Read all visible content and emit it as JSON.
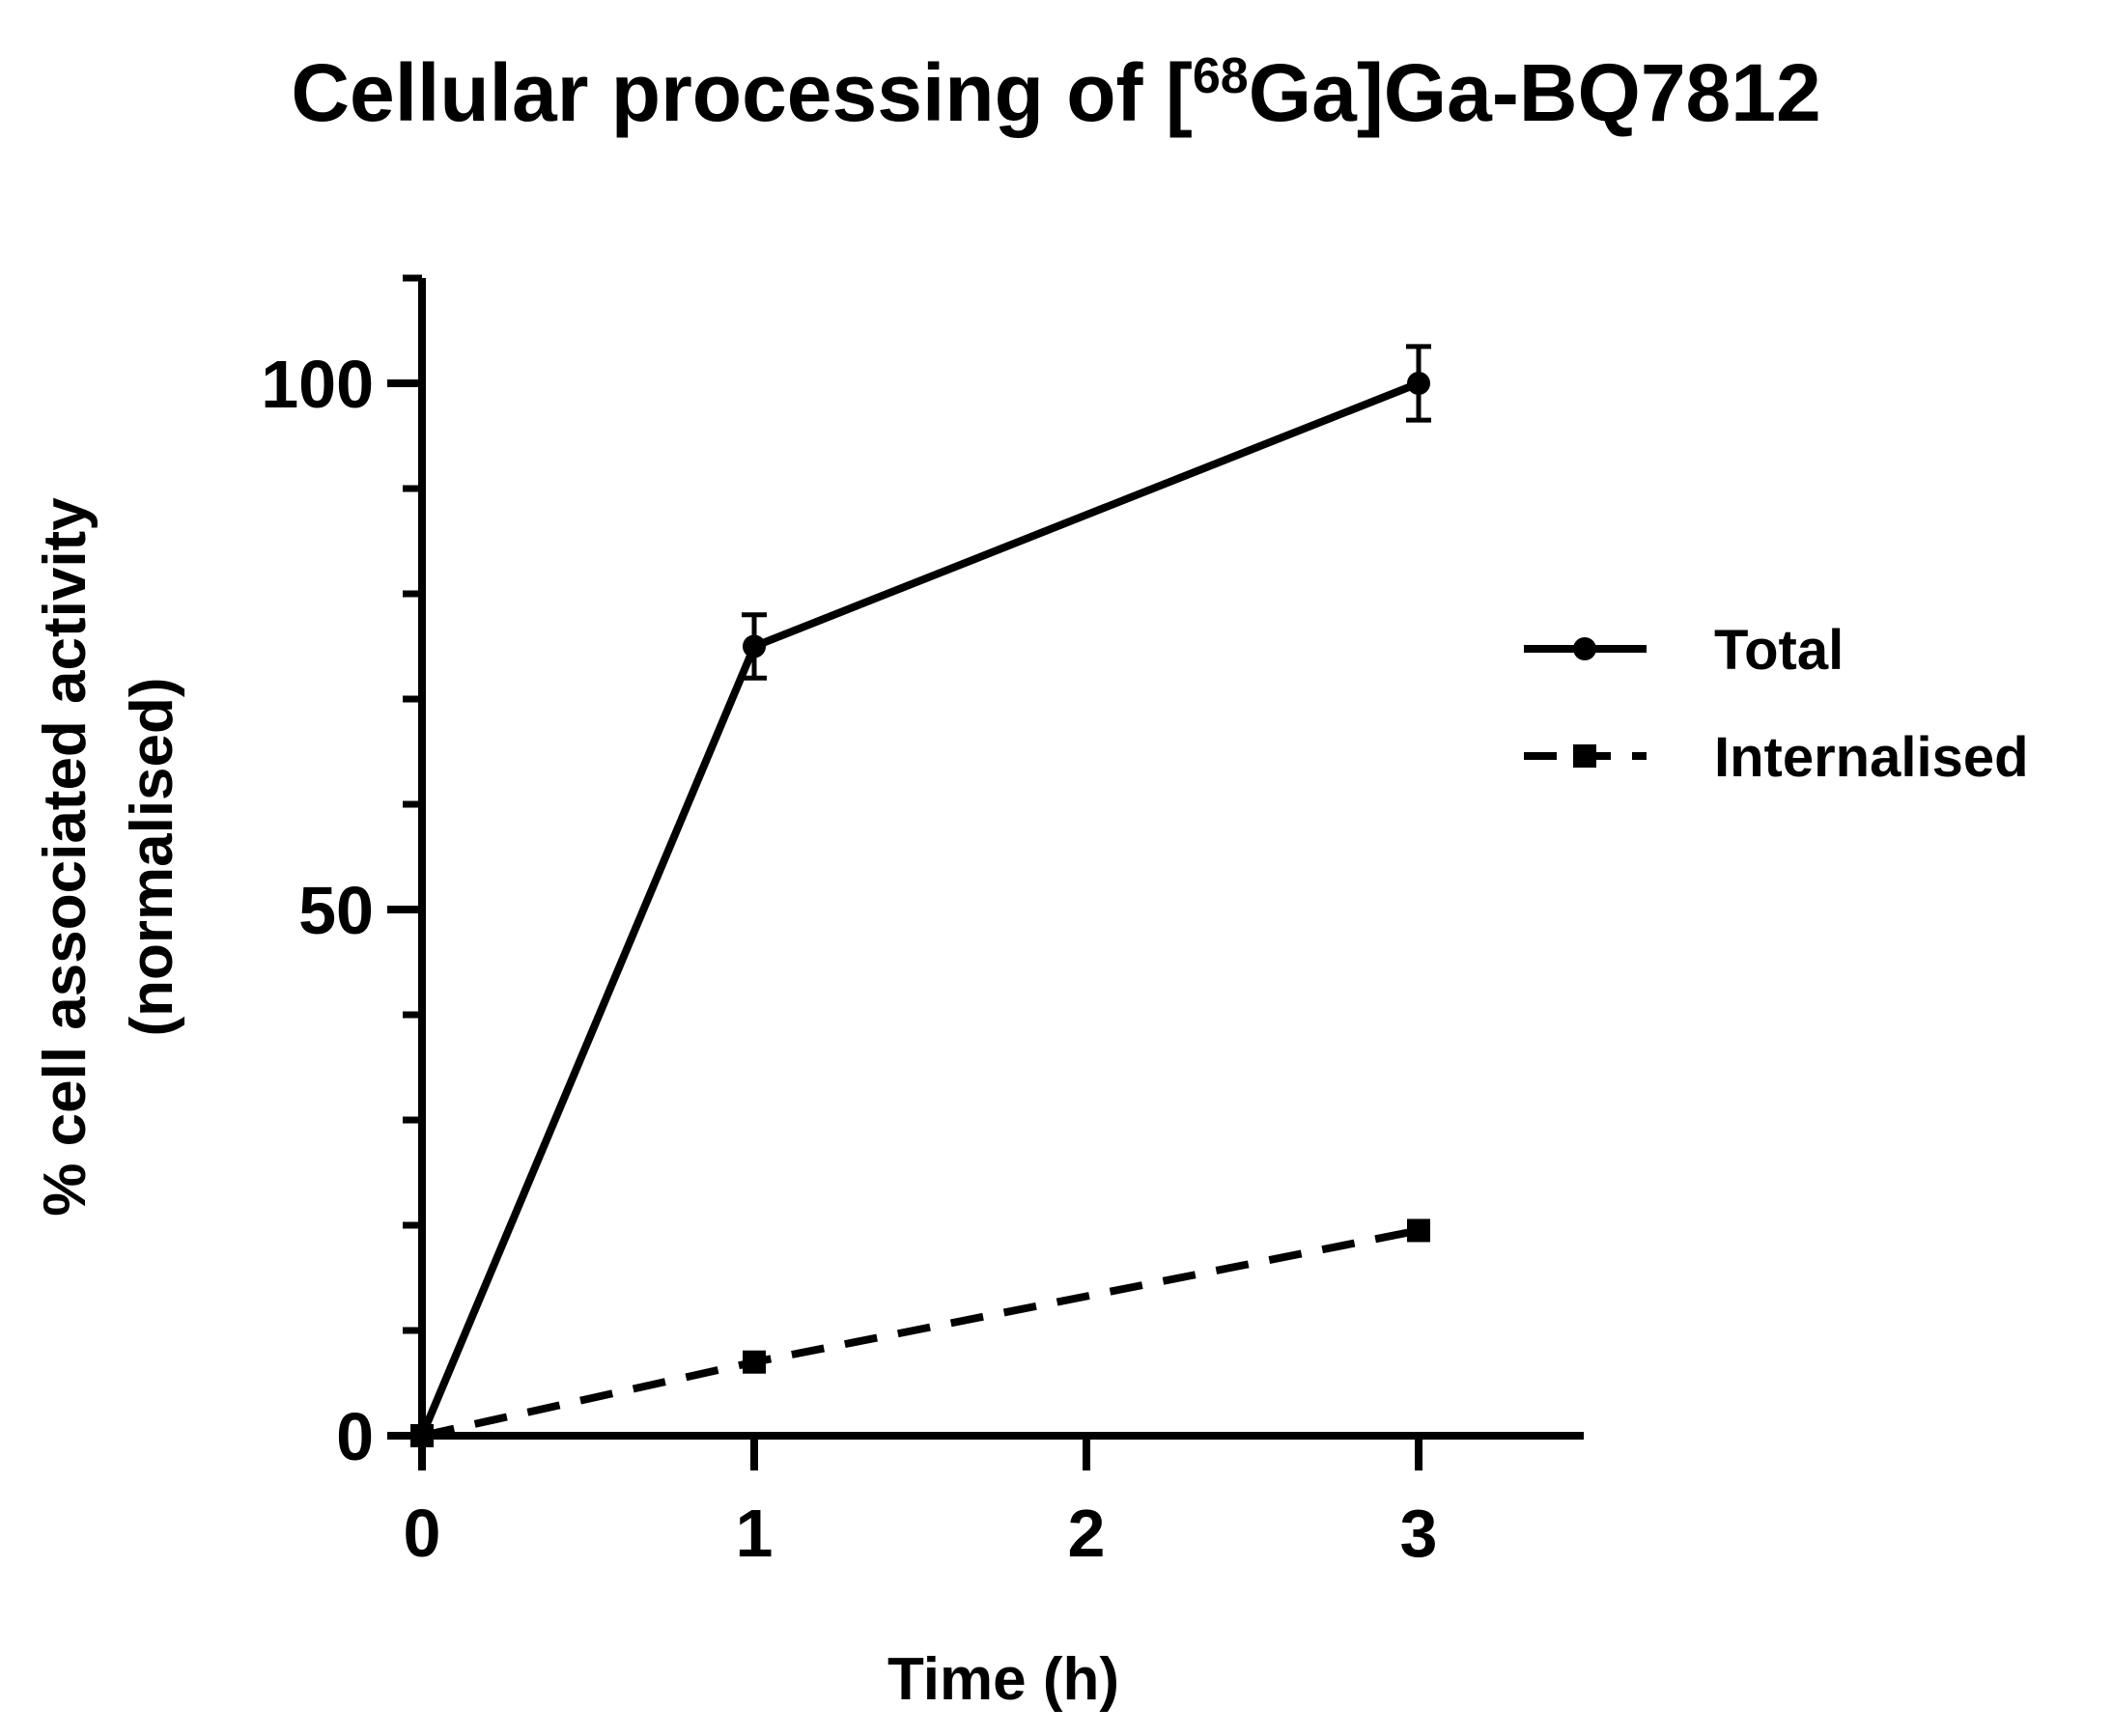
{
  "chart_data": {
    "type": "line",
    "title": {
      "prefix": "Cellular processing of [",
      "superscript": "68",
      "suffix": "Ga]Ga-BQ7812"
    },
    "xlabel": "Time (h)",
    "ylabel_lines": [
      "% cell associated activity",
      "(normalised)"
    ],
    "x": [
      0,
      1,
      3
    ],
    "xlim": [
      0,
      3.5
    ],
    "ylim": [
      0,
      110
    ],
    "xticks": [
      0,
      1,
      2,
      3
    ],
    "yticks": [
      0,
      50,
      100
    ],
    "y_minor_ticks": [
      10,
      20,
      30,
      40,
      60,
      70,
      80,
      90,
      110
    ],
    "grid": false,
    "legend_position": "right",
    "series": [
      {
        "name": "Total",
        "values": [
          0,
          75,
          100
        ],
        "errors": [
          0,
          3,
          3.5
        ],
        "style": "solid",
        "marker": "circle",
        "color": "#000000"
      },
      {
        "name": "Internalised",
        "values": [
          0,
          7,
          19.5
        ],
        "errors": [
          0,
          0,
          0.8
        ],
        "style": "dashed",
        "marker": "square",
        "color": "#000000"
      }
    ]
  }
}
